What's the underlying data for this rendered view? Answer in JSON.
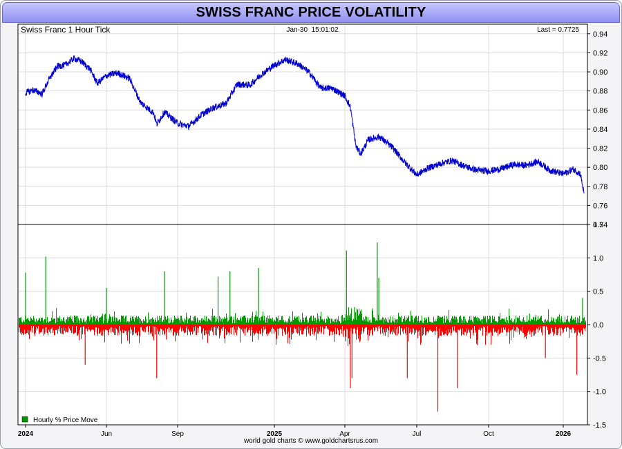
{
  "title": "SWISS FRANC PRICE VOLATILITY",
  "footer": "world gold charts © www.goldchartsrus.com",
  "colors": {
    "price_line": "#0000cc",
    "up_bars": "#009900",
    "down_bars": "#ff0000",
    "grid": "#dcdcdc",
    "title_bg": "#a7a7fb"
  },
  "chart_data": [
    {
      "type": "line",
      "title": "Swiss Franc 1 Hour Tick",
      "timestamp": "Jan-30  15:01:02",
      "last_label": "Last = 0.7725",
      "x_ticks": [
        "2024",
        "Jun",
        "Sep",
        "2025",
        "Apr",
        "Jul",
        "Oct",
        "2026"
      ],
      "ylim": [
        0.74,
        0.95
      ],
      "y_ticks": [
        "0.94",
        "0.92",
        "0.90",
        "0.88",
        "0.86",
        "0.84",
        "0.82",
        "0.80",
        "0.78",
        "0.76",
        "0.74"
      ],
      "grid": true,
      "series": [
        {
          "x": [
            "2024-01-01",
            "2024-01-15",
            "2024-02-01",
            "2024-02-15",
            "2024-03-01",
            "2024-03-15",
            "2024-04-01",
            "2024-04-15",
            "2024-05-01",
            "2024-05-15",
            "2024-06-01",
            "2024-06-15",
            "2024-07-01",
            "2024-07-15",
            "2024-08-01",
            "2024-08-05",
            "2024-08-15",
            "2024-09-01",
            "2024-09-15",
            "2024-10-01",
            "2024-10-15",
            "2024-11-01",
            "2024-11-15",
            "2024-12-01",
            "2024-12-15",
            "2025-01-01",
            "2025-01-15",
            "2025-02-01",
            "2025-02-15",
            "2025-03-01",
            "2025-03-15",
            "2025-04-01",
            "2025-04-08",
            "2025-04-15",
            "2025-04-21",
            "2025-05-01",
            "2025-05-15",
            "2025-06-01",
            "2025-06-15",
            "2025-07-01",
            "2025-07-15",
            "2025-08-01",
            "2025-08-15",
            "2025-09-01",
            "2025-09-15",
            "2025-10-01",
            "2025-10-15",
            "2025-11-01",
            "2025-11-15",
            "2025-12-01",
            "2025-12-15",
            "2026-01-01",
            "2026-01-15",
            "2026-01-25",
            "2026-01-30"
          ],
          "values": [
            0.878,
            0.881,
            0.877,
            0.893,
            0.906,
            0.907,
            0.914,
            0.911,
            0.903,
            0.888,
            0.896,
            0.899,
            0.893,
            0.868,
            0.857,
            0.845,
            0.858,
            0.846,
            0.843,
            0.855,
            0.862,
            0.867,
            0.887,
            0.886,
            0.897,
            0.907,
            0.913,
            0.908,
            0.899,
            0.883,
            0.883,
            0.875,
            0.863,
            0.822,
            0.814,
            0.829,
            0.832,
            0.82,
            0.806,
            0.792,
            0.799,
            0.804,
            0.807,
            0.801,
            0.797,
            0.796,
            0.798,
            0.803,
            0.802,
            0.806,
            0.797,
            0.793,
            0.798,
            0.793,
            0.7725
          ]
        }
      ]
    },
    {
      "type": "bar",
      "title": "Hourly % Price Move",
      "ylim": [
        -1.5,
        1.5
      ],
      "y_ticks": [
        "1.5",
        "1.0",
        "0.5",
        "0.0",
        "-0.5",
        "-1.0",
        "-1.5"
      ],
      "x_ticks": [
        "2024",
        "Jun",
        "Sep",
        "2025",
        "Apr",
        "Jul",
        "Oct",
        "2026"
      ],
      "grid": true,
      "typical_range": [
        -0.15,
        0.12
      ],
      "spikes": [
        {
          "x": "2024-01-01",
          "value": 0.78
        },
        {
          "x": "2024-02-08",
          "value": 1.02
        },
        {
          "x": "2024-04-22",
          "value": -0.6
        },
        {
          "x": "2024-06-01",
          "value": 0.55
        },
        {
          "x": "2024-08-05",
          "value": -0.8
        },
        {
          "x": "2024-08-15",
          "value": 0.8
        },
        {
          "x": "2024-10-22",
          "value": 0.72
        },
        {
          "x": "2024-11-06",
          "value": 0.8
        },
        {
          "x": "2024-12-12",
          "value": 0.85
        },
        {
          "x": "2025-04-03",
          "value": 1.11
        },
        {
          "x": "2025-04-08",
          "value": -0.95
        },
        {
          "x": "2025-04-10",
          "value": -0.8
        },
        {
          "x": "2025-05-12",
          "value": 1.23
        },
        {
          "x": "2025-05-14",
          "value": 0.7
        },
        {
          "x": "2025-06-19",
          "value": -0.8
        },
        {
          "x": "2025-07-28",
          "value": -1.3
        },
        {
          "x": "2025-08-22",
          "value": -0.95
        },
        {
          "x": "2025-12-10",
          "value": -0.5
        },
        {
          "x": "2026-01-20",
          "value": -0.75
        },
        {
          "x": "2026-01-28",
          "value": 0.4
        }
      ]
    }
  ]
}
